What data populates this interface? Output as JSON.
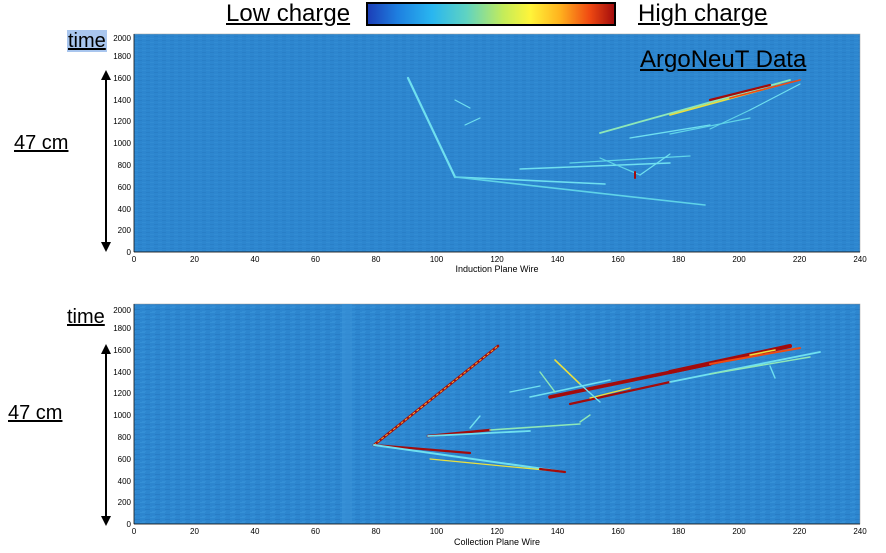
{
  "header": {
    "low_label": "Low charge",
    "high_label": "High charge"
  },
  "top_panel": {
    "data_label": "ArgoNeuT Data",
    "time_label": "time",
    "distance_label": "47 cm",
    "xlabel": "Induction Plane Wire",
    "x_ticks": [
      "0",
      "20",
      "40",
      "60",
      "80",
      "100",
      "120",
      "140",
      "160",
      "180",
      "200",
      "220",
      "240"
    ],
    "y_ticks": [
      "0",
      "200",
      "400",
      "600",
      "800",
      "1000",
      "1200",
      "1400",
      "1600",
      "1800",
      "2000"
    ]
  },
  "bottom_panel": {
    "time_label": "time",
    "distance_label": "47 cm",
    "xlabel": "Collection Plane Wire",
    "x_ticks": [
      "0",
      "20",
      "40",
      "60",
      "80",
      "100",
      "120",
      "140",
      "160",
      "180",
      "200",
      "220",
      "240"
    ],
    "y_ticks": [
      "0",
      "200",
      "400",
      "600",
      "800",
      "1000",
      "1200",
      "1400",
      "1600",
      "1800",
      "2000"
    ]
  },
  "colors": {
    "background_field": "#2d86cf",
    "track_low": "#5fd3e8",
    "track_mid": "#e8e040",
    "track_high": "#a30b0b"
  }
}
